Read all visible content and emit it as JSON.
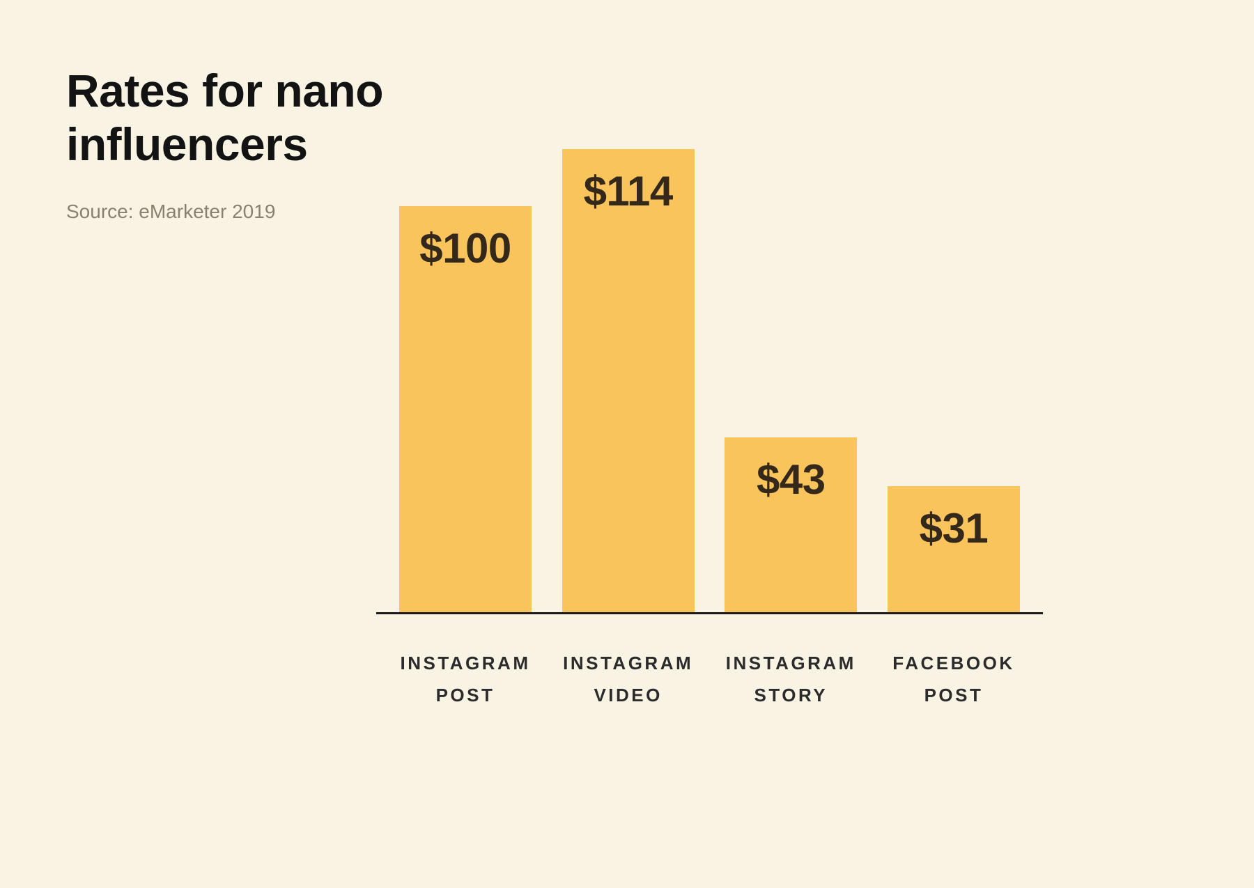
{
  "chart_data": {
    "type": "bar",
    "title": "Rates for nano influencers",
    "source": "Source: eMarketer 2019",
    "categories": [
      "Instagram Post",
      "Instagram Video",
      "Instagram Story",
      "Facebook Post"
    ],
    "category_labels": [
      [
        "INSTAGRAM",
        "POST"
      ],
      [
        "INSTAGRAM",
        "VIDEO"
      ],
      [
        "INSTAGRAM",
        "STORY"
      ],
      [
        "FACEBOOK",
        "POST"
      ]
    ],
    "values": [
      100,
      114,
      43,
      31
    ],
    "value_labels": [
      "$100",
      "$114",
      "$43",
      "$31"
    ],
    "ylim": [
      0,
      114
    ],
    "grid": false,
    "legend": false,
    "colors": {
      "background": "#F9F3E4",
      "bar": "#F9C45C",
      "value_label": "#33281A",
      "axis": "#1A1A1A",
      "title": "#131313",
      "source_text": "#87816F"
    }
  }
}
